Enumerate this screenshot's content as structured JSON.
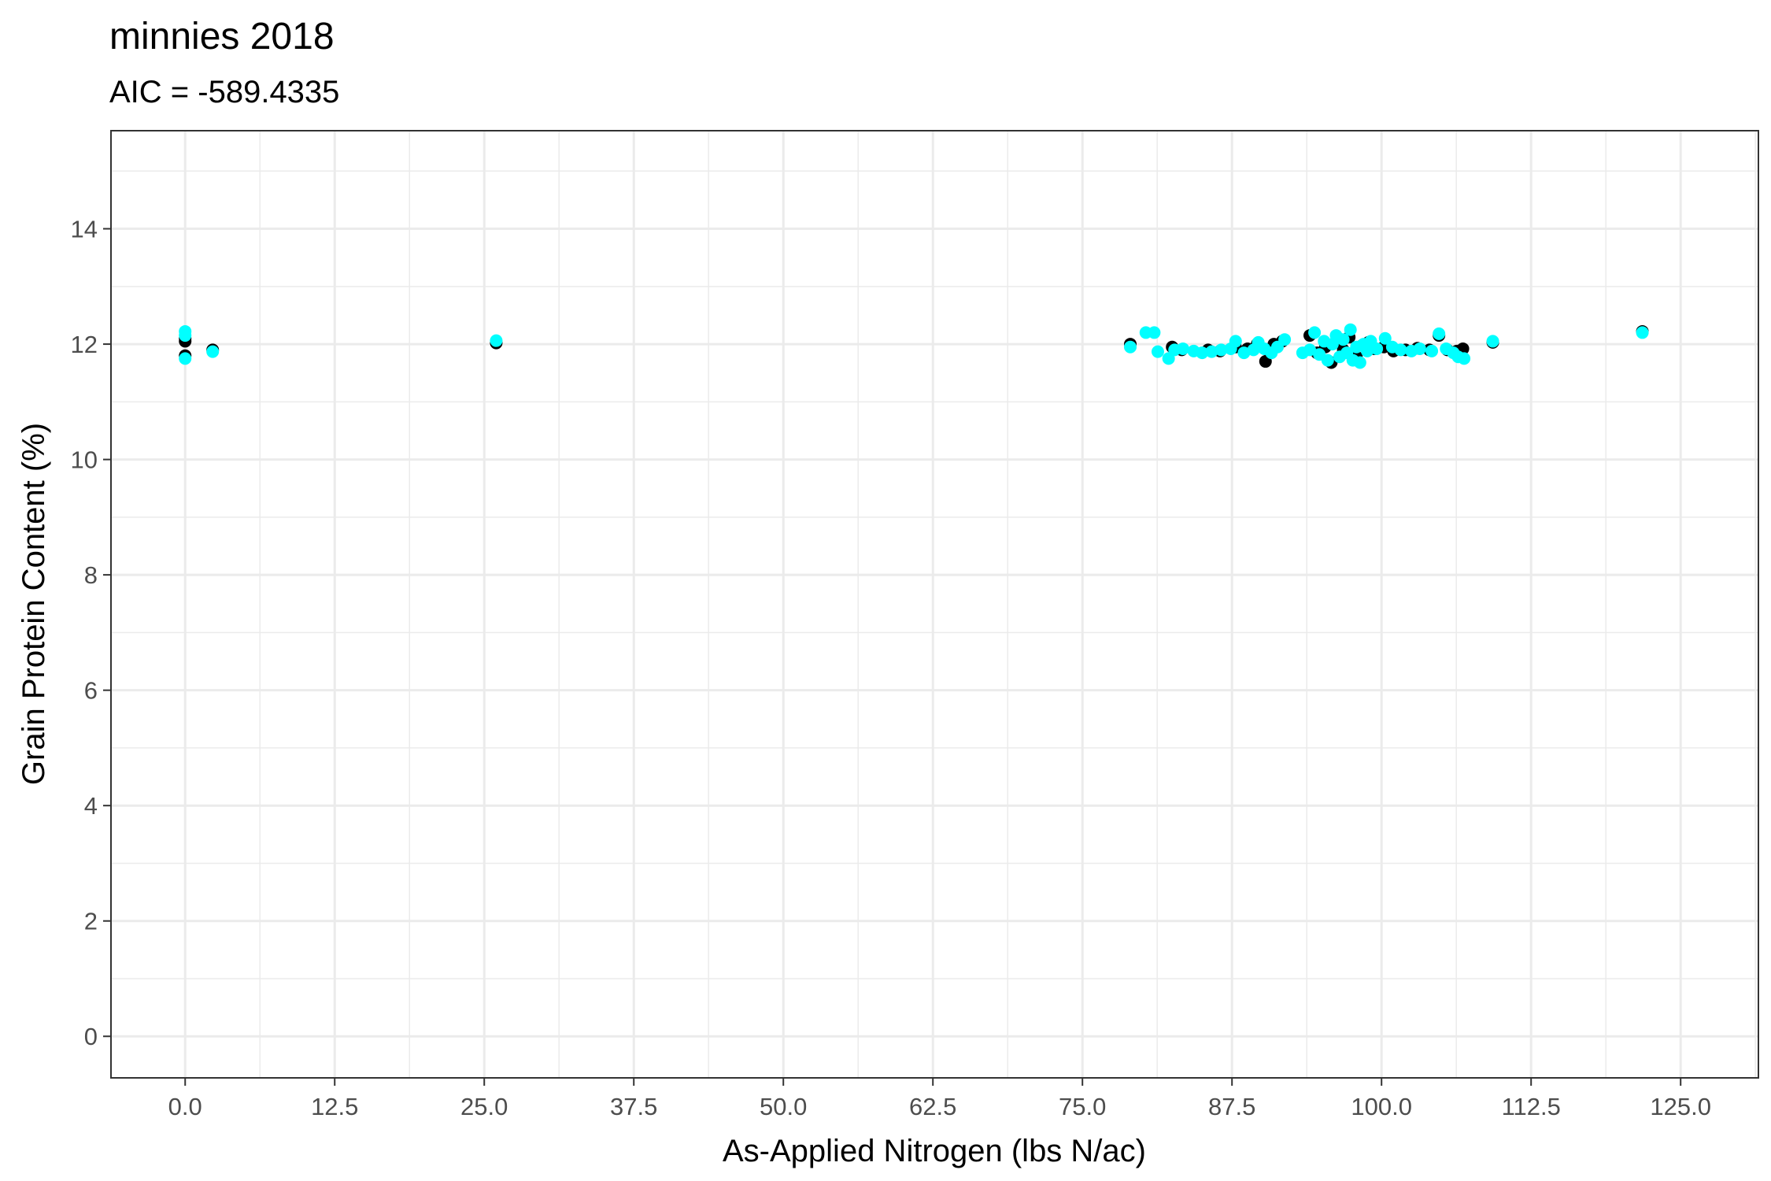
{
  "chart_data": {
    "type": "scatter",
    "title": "minnies 2018",
    "subtitle": "AIC = -589.4335",
    "xlabel": "As-Applied Nitrogen (lbs N/ac)",
    "ylabel": "Grain Protein Content (%)",
    "xlim": [
      -6.2,
      131.5
    ],
    "ylim": [
      -0.72,
      15.7
    ],
    "x_ticks": [
      0,
      12.5,
      25,
      37.5,
      50,
      62.5,
      75,
      87.5,
      100,
      112.5,
      125
    ],
    "x_tick_labels": [
      "0.0",
      "12.5",
      "25.0",
      "37.5",
      "50.0",
      "62.5",
      "75.0",
      "87.5",
      "100.0",
      "112.5",
      "125.0"
    ],
    "y_ticks": [
      0,
      2,
      4,
      6,
      8,
      10,
      12,
      14
    ],
    "y_tick_labels": [
      "0",
      "2",
      "4",
      "6",
      "8",
      "10",
      "12",
      "14"
    ],
    "grid": true,
    "legend": "none",
    "series": [
      {
        "color": "#000000",
        "points": [
          [
            0,
            12.05
          ],
          [
            0,
            12.1
          ],
          [
            0,
            11.8
          ],
          [
            2.3,
            11.9
          ],
          [
            26,
            12.02
          ],
          [
            79,
            12.0
          ],
          [
            82.5,
            11.95
          ],
          [
            83.3,
            11.9
          ],
          [
            85.5,
            11.9
          ],
          [
            86.5,
            11.88
          ],
          [
            87.8,
            11.95
          ],
          [
            88.8,
            11.92
          ],
          [
            89.6,
            12.0
          ],
          [
            90.3,
            11.7
          ],
          [
            90.6,
            11.88
          ],
          [
            91.0,
            12.0
          ],
          [
            91.7,
            12.05
          ],
          [
            94.0,
            12.15
          ],
          [
            94.6,
            11.85
          ],
          [
            95.3,
            11.95
          ],
          [
            95.8,
            11.68
          ],
          [
            96.3,
            12.05
          ],
          [
            96.8,
            11.9
          ],
          [
            97.3,
            12.12
          ],
          [
            97.9,
            11.78
          ],
          [
            98.4,
            11.98
          ],
          [
            98.9,
            12.03
          ],
          [
            99.4,
            11.92
          ],
          [
            100.2,
            11.95
          ],
          [
            101.0,
            11.88
          ],
          [
            102.0,
            11.9
          ],
          [
            103.0,
            11.93
          ],
          [
            104.0,
            11.9
          ],
          [
            104.8,
            12.15
          ],
          [
            105.5,
            11.9
          ],
          [
            106.3,
            11.88
          ],
          [
            106.8,
            11.92
          ],
          [
            109.3,
            12.03
          ],
          [
            121.8,
            12.22
          ]
        ]
      },
      {
        "color": "#00ffff",
        "points": [
          [
            0,
            12.22
          ],
          [
            0,
            12.15
          ],
          [
            0,
            11.75
          ],
          [
            2.3,
            11.87
          ],
          [
            26,
            12.06
          ],
          [
            79,
            11.95
          ],
          [
            80.3,
            12.2
          ],
          [
            81.0,
            12.2
          ],
          [
            81.3,
            11.87
          ],
          [
            82.2,
            11.75
          ],
          [
            82.7,
            11.9
          ],
          [
            83.4,
            11.92
          ],
          [
            84.3,
            11.88
          ],
          [
            85.0,
            11.85
          ],
          [
            85.8,
            11.87
          ],
          [
            86.6,
            11.9
          ],
          [
            87.4,
            11.92
          ],
          [
            87.8,
            12.05
          ],
          [
            88.5,
            11.85
          ],
          [
            89.3,
            11.9
          ],
          [
            89.7,
            12.03
          ],
          [
            90.2,
            11.92
          ],
          [
            90.8,
            11.85
          ],
          [
            91.3,
            11.95
          ],
          [
            91.9,
            12.08
          ],
          [
            93.4,
            11.85
          ],
          [
            94.0,
            11.9
          ],
          [
            94.4,
            12.2
          ],
          [
            94.8,
            11.82
          ],
          [
            95.2,
            12.05
          ],
          [
            95.5,
            11.72
          ],
          [
            95.9,
            12.0
          ],
          [
            96.2,
            12.15
          ],
          [
            96.5,
            11.78
          ],
          [
            96.8,
            12.08
          ],
          [
            97.1,
            11.85
          ],
          [
            97.4,
            12.25
          ],
          [
            97.6,
            11.72
          ],
          [
            97.9,
            11.95
          ],
          [
            98.2,
            11.68
          ],
          [
            98.5,
            12.0
          ],
          [
            98.8,
            11.88
          ],
          [
            99.1,
            12.05
          ],
          [
            99.6,
            11.92
          ],
          [
            100.3,
            12.1
          ],
          [
            100.9,
            11.95
          ],
          [
            101.6,
            11.9
          ],
          [
            102.5,
            11.88
          ],
          [
            103.2,
            11.92
          ],
          [
            104.2,
            11.88
          ],
          [
            104.8,
            12.18
          ],
          [
            105.4,
            11.92
          ],
          [
            106.0,
            11.85
          ],
          [
            106.4,
            11.78
          ],
          [
            106.9,
            11.75
          ],
          [
            109.3,
            12.05
          ],
          [
            121.8,
            12.2
          ]
        ]
      }
    ]
  }
}
